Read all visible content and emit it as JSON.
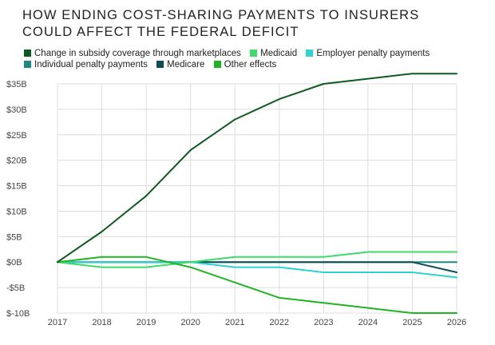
{
  "title": {
    "line1": "HOW ENDING COST-SHARING PAYMENTS TO INSURERS",
    "line2": "COULD AFFECT THE FEDERAL DEFICIT"
  },
  "chart_data": {
    "type": "line",
    "title": "HOW ENDING COST-SHARING PAYMENTS TO INSURERS COULD AFFECT THE FEDERAL DEFICIT",
    "x": [
      "2017",
      "2018",
      "2019",
      "2020",
      "2021",
      "2022",
      "2023",
      "2024",
      "2025",
      "2026"
    ],
    "ylim": [
      -10,
      35
    ],
    "yticks": [
      35,
      30,
      25,
      20,
      15,
      10,
      5,
      0,
      -5,
      -10
    ],
    "ytick_labels": [
      "$35B",
      "$30B",
      "$25B",
      "$20B",
      "$15B",
      "$10B",
      "$5B",
      "$0B",
      "-$5B",
      "$-10B"
    ],
    "grid": true,
    "legend_position": "top-left",
    "series": [
      {
        "name": "Change in subsidy coverage through marketplaces",
        "color": "#0d5a1e",
        "values": [
          0,
          6,
          13,
          22,
          28,
          32,
          35,
          36,
          37,
          37
        ]
      },
      {
        "name": "Medicaid",
        "color": "#3ddc6a",
        "values": [
          0,
          -1,
          -1,
          0,
          1,
          1,
          1,
          2,
          2,
          2
        ]
      },
      {
        "name": "Employer penalty payments",
        "color": "#2ed3d0",
        "values": [
          0,
          0,
          0,
          0,
          -1,
          -1,
          -2,
          -2,
          -2,
          -3
        ]
      },
      {
        "name": "Individual penalty payments",
        "color": "#1a8a82",
        "values": [
          0,
          0,
          0,
          0,
          0,
          0,
          0,
          0,
          0,
          0
        ]
      },
      {
        "name": "Medicare",
        "color": "#0e4d55",
        "values": [
          0,
          0,
          0,
          0,
          0,
          0,
          0,
          0,
          0,
          -2
        ]
      },
      {
        "name": "Other effects",
        "color": "#22b324",
        "values": [
          0,
          1,
          1,
          -1,
          -4,
          -7,
          -8,
          -9,
          -10,
          -10
        ]
      }
    ]
  }
}
